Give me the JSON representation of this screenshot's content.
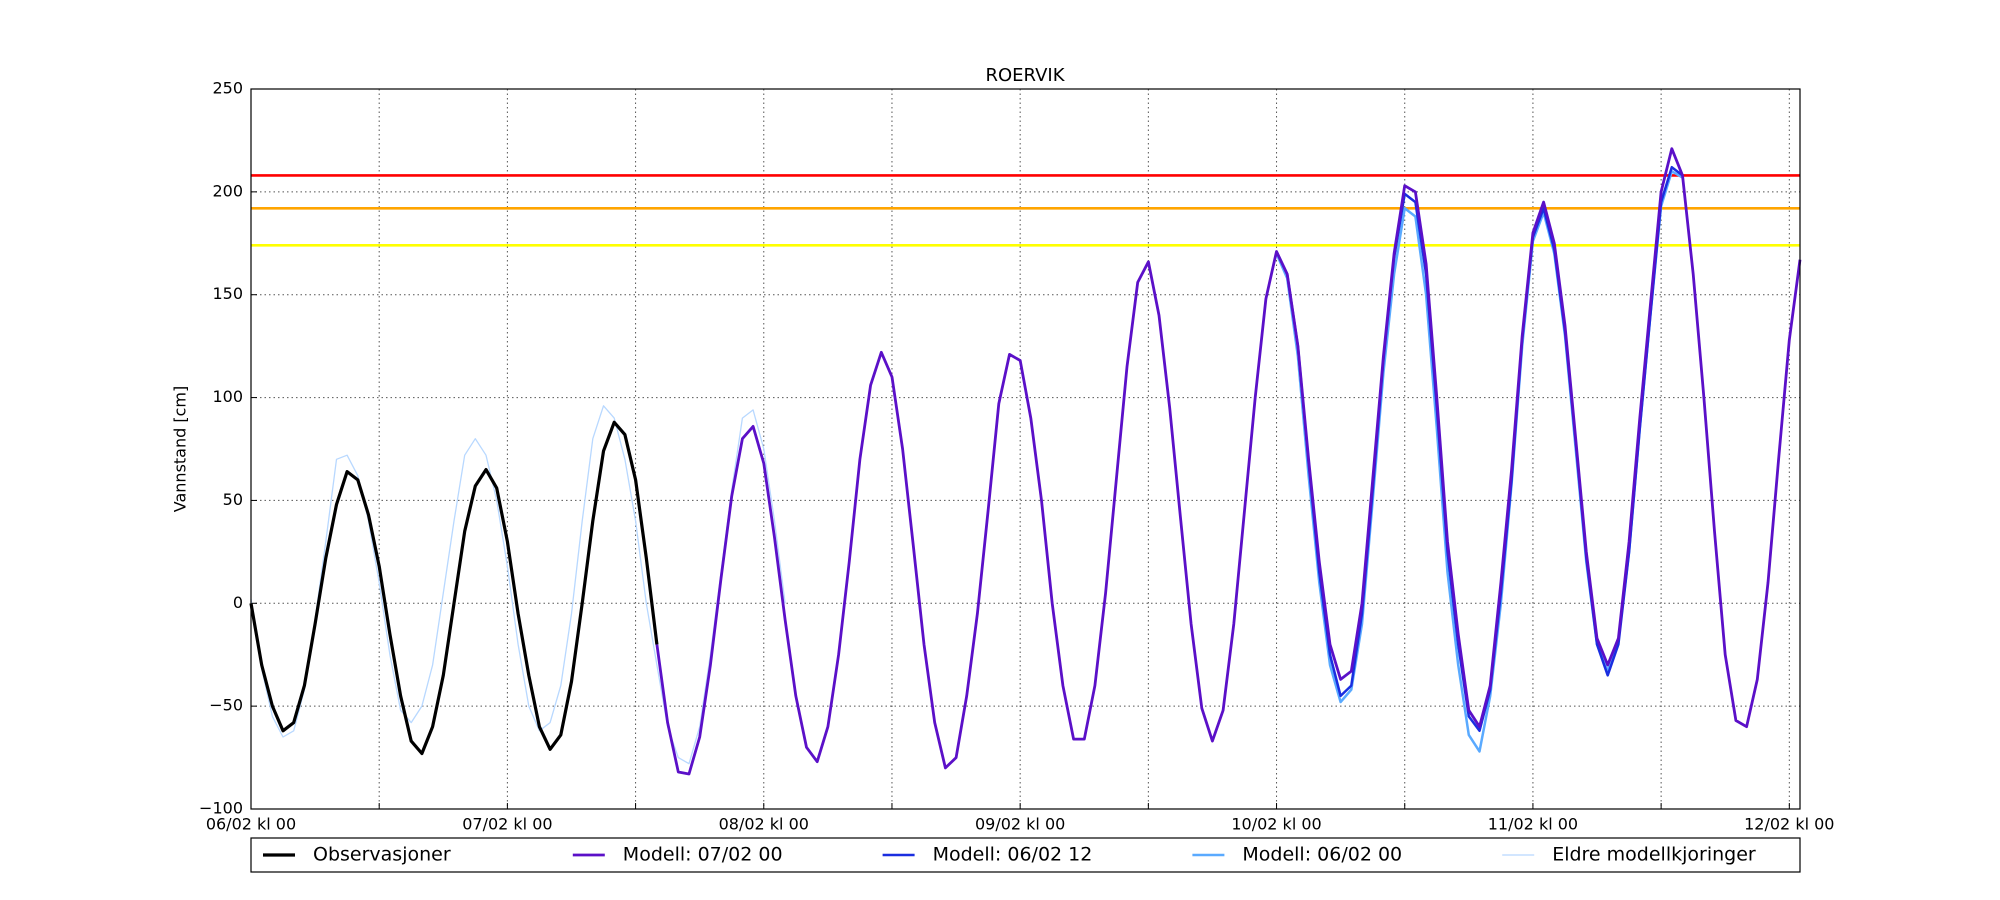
{
  "chart_data": {
    "type": "line",
    "title": "ROERVIK",
    "y_label": "Vannstand [cm]",
    "xlim": [
      0,
      145
    ],
    "ylim": [
      -100,
      250
    ],
    "xticks": [
      {
        "value": 0,
        "label": "06/02 kl 00"
      },
      {
        "value": 24,
        "label": "07/02 kl 00"
      },
      {
        "value": 48,
        "label": "08/02 kl 00"
      },
      {
        "value": 72,
        "label": "09/02 kl 00"
      },
      {
        "value": 96,
        "label": "10/02 kl 00"
      },
      {
        "value": 120,
        "label": "11/02 kl 00"
      },
      {
        "value": 144,
        "label": "12/02 kl 00"
      }
    ],
    "x_minor_ticks": [
      12,
      36,
      60,
      84,
      108,
      132
    ],
    "yticks": [
      {
        "value": -100,
        "label": "−100"
      },
      {
        "value": -50,
        "label": "−50"
      },
      0,
      50,
      100,
      150,
      200,
      250
    ],
    "grid": true,
    "legend": "bottom",
    "reference_lines": [
      {
        "value": 208,
        "color": "#ff0000"
      },
      {
        "value": 192,
        "color": "#ffa500"
      },
      {
        "value": 174,
        "color": "#ffff00"
      }
    ],
    "series": [
      {
        "name": "Eldre modellkjoringer",
        "color": "#b8d8ff",
        "width": 1.3,
        "x": [
          0,
          1,
          2,
          3,
          4,
          5,
          6,
          7,
          8,
          9,
          10,
          11,
          12,
          13,
          14,
          15,
          16,
          17,
          18,
          19,
          20,
          21,
          22,
          23,
          24,
          25,
          26,
          27,
          28,
          29,
          30,
          31,
          32,
          33,
          34,
          35,
          36,
          37,
          38,
          39,
          40,
          41,
          42,
          43,
          44,
          45,
          46,
          47,
          48,
          49,
          50
        ],
        "values": [
          2,
          -32,
          -55,
          -65,
          -62,
          -42,
          -8,
          30,
          70,
          72,
          62,
          40,
          10,
          -25,
          -52,
          -58,
          -50,
          -30,
          5,
          40,
          72,
          80,
          72,
          50,
          18,
          -20,
          -50,
          -62,
          -58,
          -40,
          -5,
          40,
          80,
          96,
          90,
          70,
          40,
          0,
          -30,
          -60,
          -75,
          -78,
          -60,
          -25,
          15,
          55,
          90,
          94,
          75,
          40,
          0
        ]
      },
      {
        "name": "Modell: 06/02 00",
        "color": "#5aaaff",
        "width": 2.5,
        "x": [
          96,
          97,
          98,
          99,
          100,
          101,
          102,
          103,
          104,
          105,
          106,
          107,
          108,
          109,
          110,
          111,
          112,
          113,
          114,
          115,
          116,
          117,
          118,
          119,
          120,
          121,
          122,
          123,
          124,
          125,
          126,
          127,
          128,
          129,
          130,
          131,
          132,
          133,
          134
        ],
        "values": [
          170,
          158,
          120,
          62,
          10,
          -30,
          -48,
          -42,
          -10,
          50,
          112,
          160,
          192,
          188,
          150,
          85,
          15,
          -30,
          -64,
          -72,
          -45,
          0,
          58,
          125,
          176,
          190,
          170,
          130,
          75,
          20,
          -20,
          -33,
          -18,
          25,
          85,
          140,
          193,
          210,
          207
        ]
      },
      {
        "name": "Modell: 06/02 12",
        "color": "#1a2ee0",
        "width": 2.5,
        "x": [
          96,
          97,
          98,
          99,
          100,
          101,
          102,
          103,
          104,
          105,
          106,
          107,
          108,
          109,
          110,
          111,
          112,
          113,
          114,
          115,
          116,
          117,
          118,
          119,
          120,
          121,
          122,
          123,
          124,
          125,
          126,
          127,
          128,
          129,
          130,
          131,
          132,
          133,
          134
        ],
        "values": [
          171,
          160,
          125,
          68,
          15,
          -25,
          -45,
          -40,
          -5,
          55,
          118,
          168,
          199,
          195,
          160,
          95,
          25,
          -20,
          -55,
          -62,
          -42,
          5,
          60,
          128,
          178,
          192,
          172,
          132,
          78,
          22,
          -20,
          -35,
          -20,
          25,
          85,
          140,
          195,
          212,
          208
        ]
      },
      {
        "name": "Modell: 07/02 00",
        "color": "#5b10c8",
        "width": 2.8,
        "x": [
          38,
          39,
          40,
          41,
          42,
          43,
          44,
          45,
          46,
          47,
          48,
          49,
          50,
          51,
          52,
          53,
          54,
          55,
          56,
          57,
          58,
          59,
          60,
          61,
          62,
          63,
          64,
          65,
          66,
          67,
          68,
          69,
          70,
          71,
          72,
          73,
          74,
          75,
          76,
          77,
          78,
          79,
          80,
          81,
          82,
          83,
          84,
          85,
          86,
          87,
          88,
          89,
          90,
          91,
          92,
          93,
          94,
          95,
          96,
          97,
          98,
          99,
          100,
          101,
          102,
          103,
          104,
          105,
          106,
          107,
          108,
          109,
          110,
          111,
          112,
          113,
          114,
          115,
          116,
          117,
          118,
          119,
          120,
          121,
          122,
          123,
          124,
          125,
          126,
          127,
          128,
          129,
          130,
          131,
          132,
          133,
          134,
          135,
          136,
          137,
          138,
          139,
          140,
          141,
          142,
          143,
          144,
          145
        ],
        "values": [
          -20,
          -58,
          -82,
          -83,
          -65,
          -30,
          12,
          52,
          80,
          86,
          68,
          32,
          -8,
          -45,
          -70,
          -77,
          -60,
          -25,
          20,
          70,
          106,
          122,
          110,
          75,
          28,
          -20,
          -58,
          -80,
          -75,
          -45,
          -5,
          45,
          97,
          121,
          118,
          90,
          50,
          0,
          -40,
          -66,
          -66,
          -40,
          5,
          60,
          115,
          156,
          166,
          140,
          95,
          42,
          -10,
          -51,
          -67,
          -52,
          -10,
          45,
          100,
          148,
          171,
          160,
          125,
          70,
          20,
          -20,
          -37,
          -33,
          0,
          60,
          120,
          170,
          203,
          200,
          165,
          100,
          30,
          -15,
          -52,
          -60,
          -40,
          10,
          65,
          130,
          180,
          195,
          175,
          135,
          80,
          25,
          -17,
          -30,
          -17,
          30,
          90,
          145,
          200,
          221,
          208,
          160,
          100,
          35,
          -25,
          -57,
          -60,
          -37,
          10,
          70,
          128,
          167
        ]
      },
      {
        "name": "Observasjoner",
        "color": "#000000",
        "width": 3.2,
        "x": [
          0,
          1,
          2,
          3,
          4,
          5,
          6,
          7,
          8,
          9,
          10,
          11,
          12,
          13,
          14,
          15,
          16,
          17,
          18,
          19,
          20,
          21,
          22,
          23,
          24,
          25,
          26,
          27,
          28,
          29,
          30,
          31,
          32,
          33,
          34,
          35,
          36,
          37,
          38
        ],
        "values": [
          0,
          -30,
          -50,
          -62,
          -58,
          -40,
          -10,
          22,
          48,
          64,
          60,
          43,
          18,
          -15,
          -45,
          -67,
          -73,
          -60,
          -35,
          0,
          35,
          57,
          65,
          56,
          30,
          -5,
          -35,
          -60,
          -71,
          -64,
          -38,
          0,
          40,
          74,
          88,
          82,
          60,
          22,
          -20
        ]
      }
    ],
    "legend_order": [
      4,
      3,
      2,
      1,
      0
    ]
  }
}
